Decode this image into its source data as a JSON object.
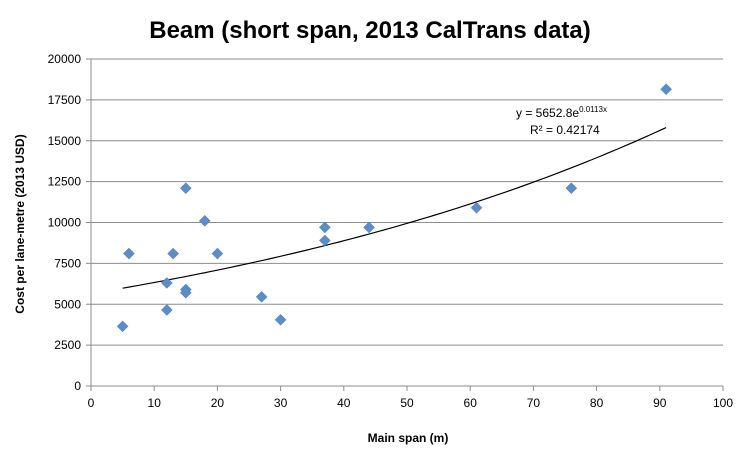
{
  "chart_data": {
    "type": "scatter",
    "title": "Beam (short span, 2013 CalTrans data)",
    "xlabel": "Main span (m)",
    "ylabel": "Cost per lane-metre (2013 USD)",
    "xlim": [
      0,
      100
    ],
    "ylim": [
      0,
      20000
    ],
    "x_ticks": [
      "0",
      "10",
      "20",
      "30",
      "40",
      "50",
      "60",
      "70",
      "80",
      "90",
      "100"
    ],
    "y_ticks": [
      "0",
      "2500",
      "5000",
      "7500",
      "10000",
      "12500",
      "15000",
      "17500",
      "20000"
    ],
    "grid": "horizontal",
    "marker_color": "#5B8DC9",
    "trendline_color": "#000000",
    "points": [
      {
        "x": 5,
        "y": 3650
      },
      {
        "x": 6,
        "y": 8100
      },
      {
        "x": 12,
        "y": 6300
      },
      {
        "x": 12,
        "y": 4650
      },
      {
        "x": 13,
        "y": 8100
      },
      {
        "x": 15,
        "y": 12100
      },
      {
        "x": 15,
        "y": 5900
      },
      {
        "x": 15,
        "y": 5700
      },
      {
        "x": 18,
        "y": 10100
      },
      {
        "x": 20,
        "y": 8100
      },
      {
        "x": 27,
        "y": 5450
      },
      {
        "x": 30,
        "y": 4050
      },
      {
        "x": 37,
        "y": 9700
      },
      {
        "x": 37,
        "y": 8900
      },
      {
        "x": 44,
        "y": 9700
      },
      {
        "x": 61,
        "y": 10900
      },
      {
        "x": 76,
        "y": 12100
      },
      {
        "x": 91,
        "y": 18150
      }
    ],
    "trendline": {
      "type": "exponential",
      "a": 5652.8,
      "b": 0.0113,
      "x_range": [
        5,
        91
      ],
      "equation_base": "y = 5652.8e",
      "equation_exponent": "0.0113x",
      "r_squared_label": "R² = 0.42174"
    }
  }
}
